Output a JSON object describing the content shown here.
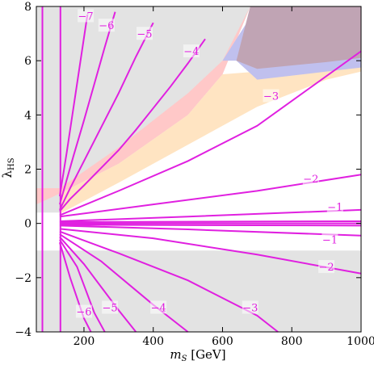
{
  "chart_data": {
    "type": "line",
    "xlabel": "m_S [GeV]",
    "xlabel_main": "m",
    "xlabel_sub": "S",
    "xlabel_unit": " [GeV]",
    "ylabel": "λHS",
    "ylabel_main": "λ",
    "ylabel_sub": "HS",
    "xlim": [
      62.5,
      1000
    ],
    "ylim": [
      -4,
      8
    ],
    "x_ticks": [
      200,
      400,
      600,
      800,
      1000
    ],
    "x_tick_labels": [
      "200",
      "400",
      "600",
      "800",
      "1000"
    ],
    "y_ticks": [
      -4,
      -2,
      0,
      2,
      4,
      6,
      8
    ],
    "y_tick_labels": [
      "−4",
      "−2",
      "0",
      "2",
      "4",
      "6",
      "8"
    ],
    "colors": {
      "contour": "#e020e0",
      "gray_region": "#e3e3e3",
      "red_band": "#ffc8c8",
      "orange_band": "#ffe4c2",
      "blue_band": "#c0c0ee",
      "purple_region": "#c0a4b4"
    },
    "contour_labels": [
      {
        "text": "−7",
        "x": 205,
        "y": 7.6
      },
      {
        "text": "−6",
        "x": 265,
        "y": 7.25
      },
      {
        "text": "−5",
        "x": 375,
        "y": 6.95
      },
      {
        "text": "−4",
        "x": 510,
        "y": 6.3
      },
      {
        "text": "−3",
        "x": 740,
        "y": 4.65
      },
      {
        "text": "−2",
        "x": 855,
        "y": 1.6
      },
      {
        "text": "−1",
        "x": 925,
        "y": 0.55
      },
      {
        "text": "−1",
        "x": 910,
        "y": -0.65
      },
      {
        "text": "−2",
        "x": 900,
        "y": -1.65
      },
      {
        "text": "−3",
        "x": 680,
        "y": -3.15
      },
      {
        "text": "−4",
        "x": 415,
        "y": -3.15
      },
      {
        "text": "−5",
        "x": 275,
        "y": -3.15
      },
      {
        "text": "−6",
        "x": 200,
        "y": -3.3
      }
    ],
    "series": [
      {
        "x": [
          130,
          300,
          500,
          700,
          1000
        ],
        "y": [
          0.3,
          1.2,
          2.3,
          3.6,
          6.35
        ]
      },
      {
        "x": [
          130,
          400,
          700,
          1000
        ],
        "y": [
          0.25,
          0.7,
          1.2,
          1.8
        ]
      },
      {
        "x": [
          130,
          500,
          1000
        ],
        "y": [
          0.08,
          0.25,
          0.5
        ]
      },
      {
        "x": [
          130,
          1000
        ],
        "y": [
          0.05,
          0.08
        ]
      },
      {
        "x": [
          130,
          1000
        ],
        "y": [
          0.0,
          0.0
        ]
      },
      {
        "x": [
          130,
          1000
        ],
        "y": [
          -0.05,
          -0.08
        ]
      },
      {
        "x": [
          130,
          500,
          1000
        ],
        "y": [
          -0.08,
          -0.22,
          -0.45
        ]
      },
      {
        "x": [
          130,
          400,
          700,
          1000
        ],
        "y": [
          -0.2,
          -0.55,
          -1.15,
          -1.85
        ]
      },
      {
        "x": [
          130,
          300,
          500,
          700,
          760
        ],
        "y": [
          -0.3,
          -1.1,
          -2.1,
          -3.4,
          -4.0
        ]
      },
      {
        "x": [
          130,
          250,
          400,
          500
        ],
        "y": [
          -0.4,
          -1.4,
          -3.0,
          -4.0
        ]
      },
      {
        "x": [
          130,
          200,
          300,
          350
        ],
        "y": [
          -0.5,
          -1.5,
          -3.2,
          -4.0
        ]
      },
      {
        "x": [
          130,
          180,
          230,
          260
        ],
        "y": [
          -0.6,
          -1.6,
          -3.3,
          -4.0
        ]
      },
      {
        "x": [
          130,
          160,
          200,
          220
        ],
        "y": [
          -0.7,
          -2.0,
          -3.5,
          -4.0
        ]
      },
      {
        "x": [
          130,
          160,
          200,
          250,
          300,
          350,
          400,
          450,
          500,
          550
        ],
        "y": [
          0.45,
          0.9,
          1.4,
          2.05,
          2.7,
          3.45,
          4.25,
          5.05,
          5.9,
          6.8
        ]
      },
      {
        "x": [
          130,
          160,
          200,
          250,
          300,
          350,
          400
        ],
        "y": [
          0.5,
          1.3,
          2.3,
          3.55,
          4.8,
          6.15,
          7.4
        ]
      },
      {
        "x": [
          130,
          170,
          200,
          230,
          260,
          290
        ],
        "y": [
          0.7,
          2.5,
          3.8,
          5.15,
          6.5,
          7.8
        ]
      },
      {
        "x": [
          130,
          150,
          170,
          190,
          210
        ],
        "y": [
          1.0,
          2.6,
          4.3,
          6.0,
          7.7
        ]
      },
      {
        "x": [
          132,
          132
        ],
        "y": [
          -4,
          8
        ]
      },
      {
        "x": [
          80,
          80
        ],
        "y": [
          -4,
          8
        ]
      }
    ]
  }
}
